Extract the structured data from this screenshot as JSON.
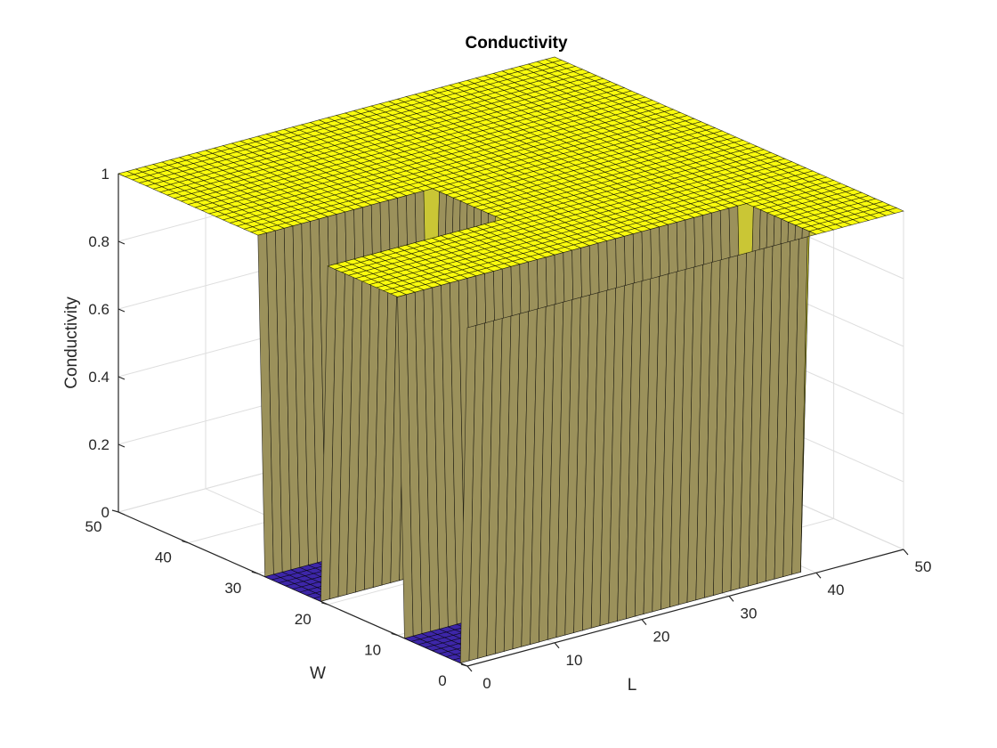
{
  "chart_data": {
    "type": "surface",
    "title": "Conductivity",
    "xlabel": "L",
    "ylabel": "W",
    "zlabel": "Conductivity",
    "xlim": [
      0,
      50
    ],
    "ylim": [
      0,
      50
    ],
    "zlim": [
      0,
      1
    ],
    "xticks": [
      "0",
      "10",
      "20",
      "30",
      "40",
      "50"
    ],
    "yticks": [
      "0",
      "10",
      "20",
      "30",
      "40",
      "50"
    ],
    "zticks": [
      "0",
      "0.2",
      "0.4",
      "0.6",
      "0.8",
      "1"
    ],
    "colormap": {
      "low": "#3d26a8",
      "high": "#f9fb0e"
    },
    "grid": true,
    "description_of_values": "Conductivity is 1 everywhere except two 0-valued slots opening from the L=0 face",
    "regions": [
      {
        "value": 0,
        "L": [
          0,
          20
        ],
        "W": [
          20,
          30
        ]
      },
      {
        "value": 0,
        "L": [
          0,
          40
        ],
        "W": [
          0,
          10
        ]
      }
    ],
    "background_value": 1
  }
}
